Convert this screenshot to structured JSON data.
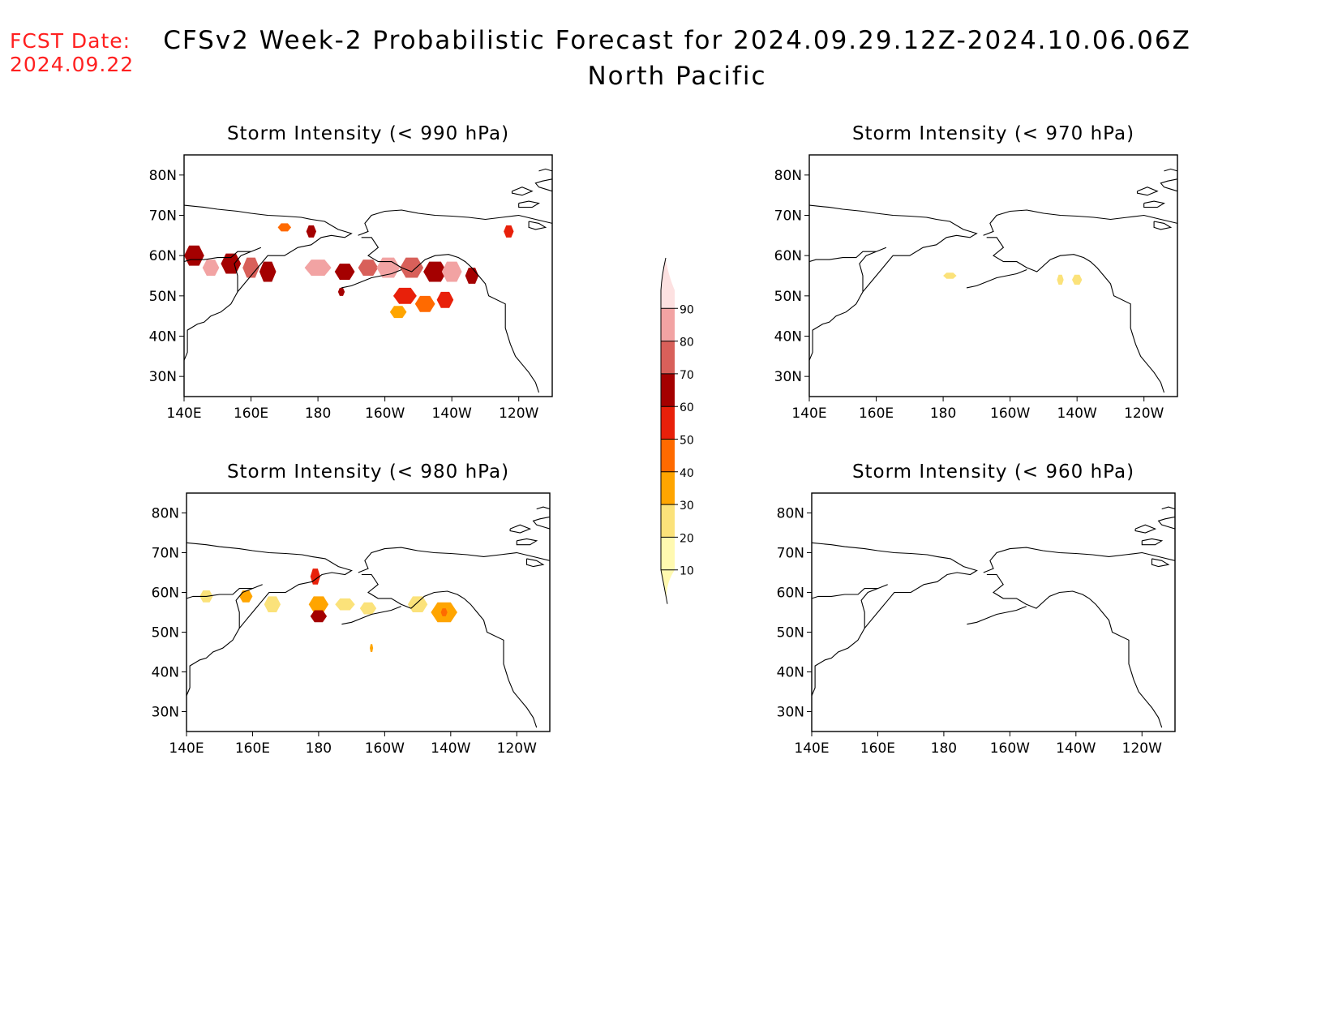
{
  "header": {
    "fcst_label": "FCST Date:",
    "fcst_date": "2024.09.22",
    "title": "CFSv2 Week-2 Probabilistic Forecast for 2024.09.29.12Z-2024.10.06.06Z",
    "subtitle": "North Pacific"
  },
  "axes": {
    "lat_labels": [
      "80N",
      "70N",
      "60N",
      "50N",
      "40N",
      "30N"
    ],
    "lon_labels": [
      "140E",
      "160E",
      "180",
      "160W",
      "140W",
      "120W"
    ],
    "lat_values": [
      80,
      70,
      60,
      50,
      40,
      30
    ],
    "lon_values": [
      140,
      160,
      180,
      200,
      220,
      240
    ],
    "lon_range": [
      140,
      250
    ],
    "lat_range": [
      25,
      85
    ]
  },
  "panels": [
    {
      "title": "Storm Intensity (< 990 hPa)"
    },
    {
      "title": "Storm Intensity (< 970 hPa)"
    },
    {
      "title": "Storm Intensity (< 980 hPa)"
    },
    {
      "title": "Storm Intensity (< 960 hPa)"
    }
  ],
  "colorbar": {
    "levels": [
      "10",
      "20",
      "30",
      "40",
      "50",
      "60",
      "70",
      "80",
      "90"
    ],
    "colors": [
      "#fff9b0",
      "#fbe27a",
      "#ffa500",
      "#ff6a00",
      "#e8200a",
      "#a40000",
      "#d8605a",
      "#f2a3a3",
      "#fde1e1"
    ]
  },
  "colors": {
    "fcst": "#ff2020",
    "coast": "#000000"
  },
  "fields": {
    "p990": [
      {
        "lon": 143,
        "lat": 60,
        "w": 6,
        "h": 5,
        "lvl": 5
      },
      {
        "lon": 148,
        "lat": 57,
        "w": 5,
        "h": 4,
        "lvl": 7
      },
      {
        "lon": 154,
        "lat": 58,
        "w": 6,
        "h": 5,
        "lvl": 5
      },
      {
        "lon": 160,
        "lat": 57,
        "w": 5,
        "h": 5,
        "lvl": 6
      },
      {
        "lon": 165,
        "lat": 56,
        "w": 5,
        "h": 5,
        "lvl": 5
      },
      {
        "lon": 170,
        "lat": 67,
        "w": 4,
        "h": 2,
        "lvl": 3
      },
      {
        "lon": 178,
        "lat": 66,
        "w": 3,
        "h": 3,
        "lvl": 5
      },
      {
        "lon": 180,
        "lat": 57,
        "w": 8,
        "h": 4,
        "lvl": 7
      },
      {
        "lon": 188,
        "lat": 56,
        "w": 6,
        "h": 4,
        "lvl": 5
      },
      {
        "lon": 195,
        "lat": 57,
        "w": 6,
        "h": 4,
        "lvl": 6
      },
      {
        "lon": 201,
        "lat": 57,
        "w": 7,
        "h": 5,
        "lvl": 7
      },
      {
        "lon": 208,
        "lat": 57,
        "w": 7,
        "h": 5,
        "lvl": 6
      },
      {
        "lon": 215,
        "lat": 56,
        "w": 7,
        "h": 5,
        "lvl": 5
      },
      {
        "lon": 220,
        "lat": 56,
        "w": 6,
        "h": 5,
        "lvl": 7
      },
      {
        "lon": 226,
        "lat": 55,
        "w": 4,
        "h": 4,
        "lvl": 5
      },
      {
        "lon": 206,
        "lat": 50,
        "w": 7,
        "h": 4,
        "lvl": 4
      },
      {
        "lon": 212,
        "lat": 48,
        "w": 6,
        "h": 4,
        "lvl": 3
      },
      {
        "lon": 204,
        "lat": 46,
        "w": 5,
        "h": 3,
        "lvl": 2
      },
      {
        "lon": 218,
        "lat": 49,
        "w": 5,
        "h": 4,
        "lvl": 4
      },
      {
        "lon": 187,
        "lat": 51,
        "w": 2,
        "h": 2,
        "lvl": 5
      },
      {
        "lon": 237,
        "lat": 66,
        "w": 3,
        "h": 3,
        "lvl": 4
      }
    ],
    "p980": [
      {
        "lon": 146,
        "lat": 59,
        "w": 4,
        "h": 3,
        "lvl": 1
      },
      {
        "lon": 158,
        "lat": 59,
        "w": 4,
        "h": 3,
        "lvl": 2
      },
      {
        "lon": 166,
        "lat": 57,
        "w": 5,
        "h": 4,
        "lvl": 1
      },
      {
        "lon": 179,
        "lat": 64,
        "w": 3,
        "h": 4,
        "lvl": 4
      },
      {
        "lon": 180,
        "lat": 57,
        "w": 6,
        "h": 4,
        "lvl": 2
      },
      {
        "lon": 180,
        "lat": 54,
        "w": 5,
        "h": 3,
        "lvl": 5
      },
      {
        "lon": 188,
        "lat": 57,
        "w": 6,
        "h": 3,
        "lvl": 1
      },
      {
        "lon": 195,
        "lat": 56,
        "w": 5,
        "h": 3,
        "lvl": 1
      },
      {
        "lon": 210,
        "lat": 57,
        "w": 6,
        "h": 4,
        "lvl": 1
      },
      {
        "lon": 218,
        "lat": 55,
        "w": 8,
        "h": 5,
        "lvl": 2
      },
      {
        "lon": 218,
        "lat": 55,
        "w": 2,
        "h": 2,
        "lvl": 3
      },
      {
        "lon": 196,
        "lat": 46,
        "w": 1,
        "h": 2,
        "lvl": 2
      }
    ],
    "p970": [
      {
        "lon": 182,
        "lat": 55,
        "w": 4,
        "h": 1.5,
        "lvl": 1
      },
      {
        "lon": 215,
        "lat": 54,
        "w": 2,
        "h": 2.5,
        "lvl": 1
      },
      {
        "lon": 220,
        "lat": 54,
        "w": 3,
        "h": 2.5,
        "lvl": 1
      }
    ],
    "p960": []
  }
}
